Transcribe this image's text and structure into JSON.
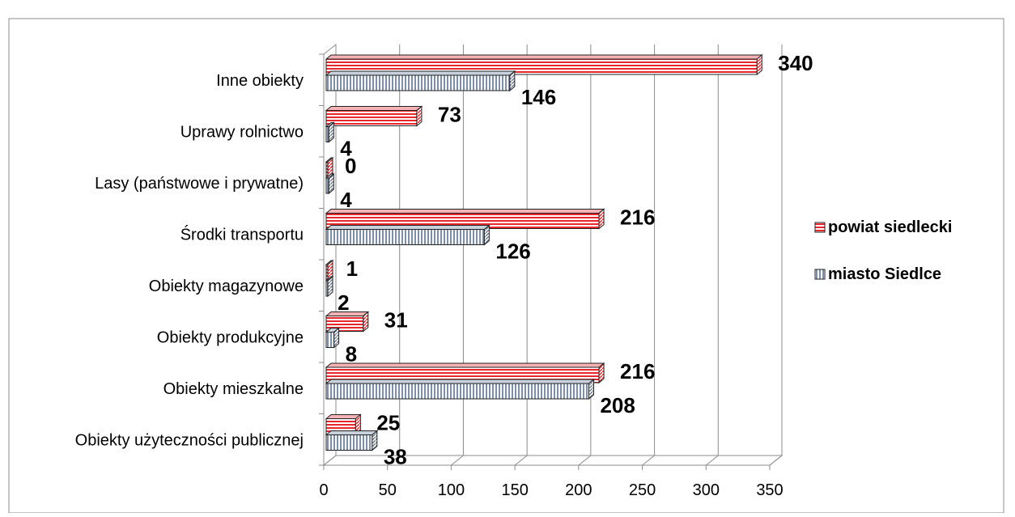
{
  "chart_data": {
    "type": "bar",
    "orientation": "horizontal",
    "three_d": true,
    "title": "",
    "xlabel": "",
    "ylabel": "",
    "xlim": [
      0,
      350
    ],
    "x_ticks": [
      0,
      50,
      100,
      150,
      200,
      250,
      300,
      350
    ],
    "grid": true,
    "legend_position": "right",
    "categories": [
      "Obiekty użyteczności publicznej",
      "Obiekty mieszkalne",
      "Obiekty produkcyjne",
      "Obiekty magazynowe",
      "Środki transportu",
      "Lasy (państwowe i prywatne)",
      "Uprawy rolnictwo",
      "Inne obiekty"
    ],
    "series": [
      {
        "name": "powiat siedlecki",
        "color": "#e8272c",
        "pattern": "horizontal-stripes",
        "values": [
          25,
          216,
          31,
          1,
          216,
          0,
          73,
          340
        ]
      },
      {
        "name": "miasto Siedlce",
        "color": "#7f8fa6",
        "pattern": "vertical-stripes",
        "values": [
          38,
          208,
          8,
          2,
          126,
          4,
          4,
          146
        ]
      }
    ]
  }
}
